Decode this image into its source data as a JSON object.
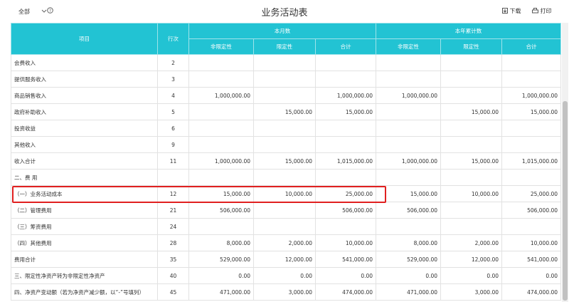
{
  "toolbar": {
    "filter": "全部",
    "title": "业务活动表",
    "download": "下载",
    "print": "打印"
  },
  "table": {
    "header": {
      "item": "项目",
      "line": "行次",
      "month": "本月数",
      "year": "本年累计数",
      "month_cols": [
        "非限定性",
        "限定性",
        "合计"
      ],
      "year_cols": [
        "非限定性",
        "限定性",
        "合计"
      ]
    },
    "rows": [
      [
        "会费收入",
        "2",
        null,
        null,
        null,
        null,
        null,
        null
      ],
      [
        "提供服务收入",
        "3",
        null,
        null,
        null,
        null,
        null,
        null
      ],
      [
        "商品销售收入",
        "4",
        "1,000,000.00",
        null,
        "1,000,000.00",
        "1,000,000.00",
        null,
        "1,000,000.00"
      ],
      [
        "政府补助收入",
        "5",
        null,
        "15,000.00",
        "15,000.00",
        null,
        "15,000.00",
        "15,000.00"
      ],
      [
        "投资收益",
        "6",
        null,
        null,
        null,
        null,
        null,
        null
      ],
      [
        "其他收入",
        "9",
        null,
        null,
        null,
        null,
        null,
        null
      ],
      [
        "收入合计",
        "11",
        "1,000,000.00",
        "15,000.00",
        "1,015,000.00",
        "1,000,000.00",
        "15,000.00",
        "1,015,000.00"
      ],
      [
        "二、费 用",
        null,
        null,
        null,
        null,
        null,
        null,
        null
      ],
      [
        "（一）业务活动成本",
        "12",
        "15,000.00",
        "10,000.00",
        "25,000.00",
        "15,000.00",
        "10,000.00",
        "25,000.00"
      ],
      [
        "（二）管理费用",
        "21",
        "506,000.00",
        null,
        "506,000.00",
        "506,000.00",
        null,
        "506,000.00"
      ],
      [
        "（三）筹资费用",
        "24",
        null,
        null,
        null,
        null,
        null,
        null
      ],
      [
        "（四）其他费用",
        "28",
        "8,000.00",
        "2,000.00",
        "10,000.00",
        "8,000.00",
        "2,000.00",
        "10,000.00"
      ],
      [
        "费用合计",
        "35",
        "529,000.00",
        "12,000.00",
        "541,000.00",
        "529,000.00",
        "12,000.00",
        "541,000.00"
      ],
      [
        "三、限定性净资产转为非限定性净资产",
        "40",
        "0.00",
        "0.00",
        "0.00",
        "0.00",
        "0.00",
        "0.00"
      ],
      [
        "四、净资产变动额（若为净资产减少额，以“-”号填列）",
        "45",
        "471,000.00",
        "3,000.00",
        "474,000.00",
        "471,000.00",
        "3,000.00",
        "474,000.00"
      ]
    ]
  }
}
